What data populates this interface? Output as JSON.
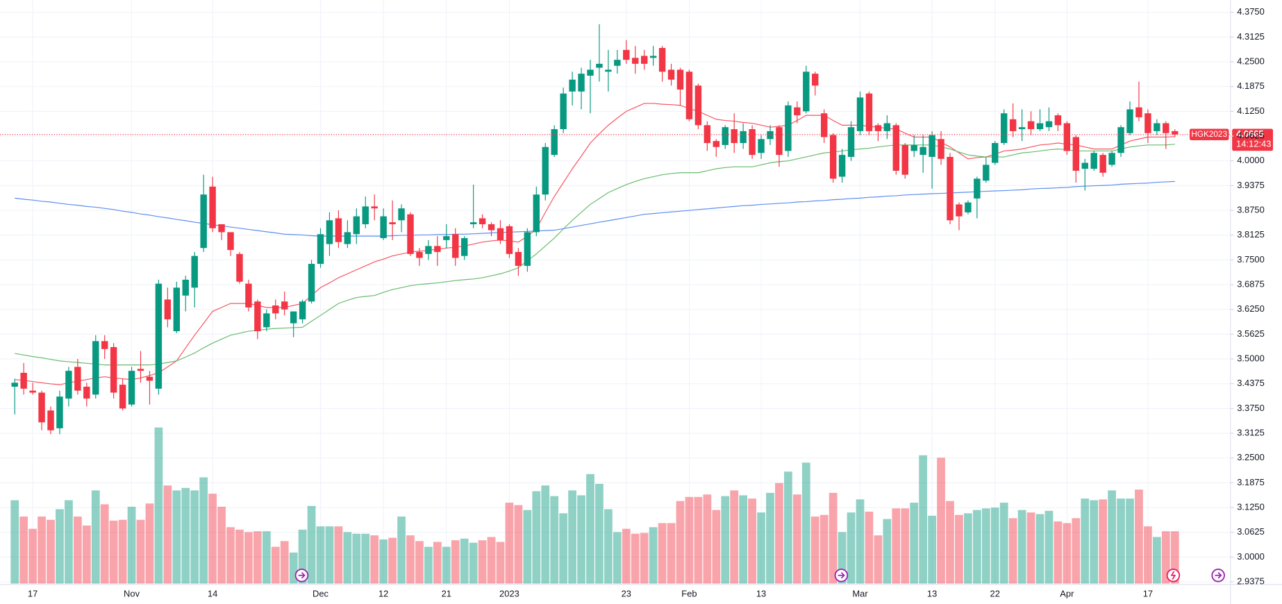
{
  "chart_data": {
    "type": "candlestick",
    "up_color": "#089981",
    "down_color": "#f23645",
    "grid": true,
    "ylim": [
      2.931,
      4.406
    ],
    "yticks": [
      {
        "value": 4.375,
        "label": "4.3750"
      },
      {
        "value": 4.3125,
        "label": "4.3125"
      },
      {
        "value": 4.25,
        "label": "4.2500"
      },
      {
        "value": 4.1875,
        "label": "4.1875"
      },
      {
        "value": 4.125,
        "label": "4.1250"
      },
      {
        "value": 4.0625,
        "label": "4.0625"
      },
      {
        "value": 4.0,
        "label": "4.0000"
      },
      {
        "value": 3.9375,
        "label": "3.9375"
      },
      {
        "value": 3.875,
        "label": "3.8750"
      },
      {
        "value": 3.8125,
        "label": "3.8125"
      },
      {
        "value": 3.75,
        "label": "3.7500"
      },
      {
        "value": 3.6875,
        "label": "3.6875"
      },
      {
        "value": 3.625,
        "label": "3.6250"
      },
      {
        "value": 3.5625,
        "label": "3.5625"
      },
      {
        "value": 3.5,
        "label": "3.5000"
      },
      {
        "value": 3.4375,
        "label": "3.4375"
      },
      {
        "value": 3.375,
        "label": "3.3750"
      },
      {
        "value": 3.3125,
        "label": "3.3125"
      },
      {
        "value": 3.25,
        "label": "3.2500"
      },
      {
        "value": 3.1875,
        "label": "3.1875"
      },
      {
        "value": 3.125,
        "label": "3.1250"
      },
      {
        "value": 3.0625,
        "label": "3.0625"
      },
      {
        "value": 3.0,
        "label": "3.0000"
      },
      {
        "value": 2.9375,
        "label": "2.9375"
      }
    ],
    "categories": [
      null,
      null,
      "17",
      null,
      null,
      null,
      null,
      null,
      null,
      null,
      null,
      null,
      null,
      "Nov",
      null,
      null,
      null,
      null,
      null,
      null,
      null,
      null,
      "14",
      null,
      null,
      null,
      null,
      null,
      null,
      null,
      null,
      null,
      null,
      null,
      "Dec",
      null,
      null,
      null,
      null,
      null,
      null,
      "12",
      null,
      null,
      null,
      null,
      null,
      null,
      "21",
      null,
      null,
      null,
      null,
      null,
      null,
      "2023",
      null,
      null,
      null,
      null,
      null,
      null,
      null,
      null,
      null,
      null,
      null,
      null,
      "23",
      null,
      null,
      null,
      null,
      null,
      null,
      "Feb",
      null,
      null,
      null,
      null,
      null,
      null,
      null,
      "13",
      null,
      null,
      null,
      null,
      null,
      null,
      null,
      null,
      null,
      null,
      "Mar",
      null,
      null,
      null,
      null,
      null,
      null,
      null,
      "13",
      null,
      null,
      null,
      null,
      null,
      null,
      "22",
      null,
      null,
      null,
      null,
      null,
      null,
      null,
      "Apr",
      null,
      null,
      null,
      null,
      null,
      null,
      null,
      null,
      "17",
      null,
      null,
      null
    ],
    "candles": {
      "open": [
        3.43,
        3.465,
        3.42,
        3.415,
        3.37,
        3.325,
        3.4,
        3.48,
        3.43,
        3.41,
        3.545,
        3.53,
        3.435,
        3.385,
        3.475,
        3.455,
        3.425,
        3.65,
        3.57,
        3.66,
        3.68,
        3.78,
        3.935,
        3.84,
        3.82,
        3.765,
        3.69,
        3.645,
        3.58,
        3.635,
        3.645,
        3.59,
        3.6,
        3.645,
        3.74,
        3.79,
        3.855,
        3.79,
        3.815,
        3.84,
        3.885,
        3.805,
        3.845,
        3.85,
        3.865,
        3.77,
        3.765,
        3.785,
        3.8,
        3.815,
        3.76,
        3.84,
        3.855,
        3.84,
        3.83,
        3.835,
        3.77,
        3.735,
        3.82,
        3.915,
        4.015,
        4.08,
        4.175,
        4.175,
        4.215,
        4.235,
        4.225,
        4.24,
        4.28,
        4.26,
        4.265,
        4.26,
        4.285,
        4.23,
        4.23,
        4.225,
        4.19,
        4.09,
        4.05,
        4.04,
        4.08,
        4.045,
        4.08,
        4.02,
        4.055,
        4.085,
        4.025,
        4.135,
        4.125,
        4.22,
        4.12,
        4.065,
        3.96,
        4.01,
        4.075,
        4.17,
        4.09,
        4.075,
        4.09,
        4.04,
        4.025,
        4.015,
        4.01,
        4.055,
        4.01,
        3.89,
        3.87,
        3.905,
        3.95,
        3.995,
        4.045,
        4.105,
        4.08,
        4.1,
        4.08,
        4.085,
        4.115,
        4.095,
        4.06,
        3.98,
        3.98,
        4.015,
        3.99,
        4.02,
        4.07,
        4.135,
        4.12,
        4.075,
        4.095,
        4.075
      ],
      "high": [
        3.45,
        3.49,
        3.44,
        3.42,
        3.38,
        3.42,
        3.48,
        3.5,
        3.44,
        3.56,
        3.56,
        3.54,
        3.45,
        3.48,
        3.52,
        3.47,
        3.7,
        3.68,
        3.695,
        3.71,
        3.77,
        3.965,
        3.96,
        3.84,
        3.82,
        3.77,
        3.7,
        3.65,
        3.625,
        3.65,
        3.67,
        3.62,
        3.65,
        3.75,
        3.83,
        3.87,
        3.875,
        3.85,
        3.88,
        3.91,
        3.915,
        3.88,
        3.9,
        3.89,
        3.87,
        3.78,
        3.8,
        3.81,
        3.84,
        3.83,
        3.81,
        3.94,
        3.865,
        3.845,
        3.85,
        3.84,
        3.78,
        3.83,
        3.935,
        4.045,
        4.09,
        4.185,
        4.225,
        4.235,
        4.255,
        4.345,
        4.28,
        4.28,
        4.305,
        4.29,
        4.28,
        4.29,
        4.29,
        4.245,
        4.235,
        4.23,
        4.195,
        4.1,
        4.055,
        4.09,
        4.12,
        4.095,
        4.09,
        4.065,
        4.09,
        4.09,
        4.15,
        4.15,
        4.24,
        4.225,
        4.13,
        4.07,
        4.03,
        4.1,
        4.175,
        4.175,
        4.095,
        4.115,
        4.095,
        4.045,
        4.065,
        4.065,
        4.075,
        4.075,
        4.02,
        3.895,
        3.9,
        3.96,
        4.01,
        4.05,
        4.13,
        4.145,
        4.13,
        4.125,
        4.13,
        4.135,
        4.12,
        4.1,
        4.065,
        4.005,
        4.025,
        4.02,
        4.025,
        4.09,
        4.15,
        4.2,
        4.13,
        4.105,
        4.1,
        4.08
      ],
      "low": [
        3.36,
        3.41,
        3.41,
        3.32,
        3.31,
        3.31,
        3.38,
        3.41,
        3.38,
        3.4,
        3.5,
        3.4,
        3.37,
        3.38,
        3.44,
        3.385,
        3.41,
        3.58,
        3.565,
        3.62,
        3.63,
        3.77,
        3.82,
        3.8,
        3.76,
        3.69,
        3.62,
        3.55,
        3.57,
        3.6,
        3.61,
        3.555,
        3.59,
        3.64,
        3.73,
        3.76,
        3.78,
        3.78,
        3.79,
        3.83,
        3.85,
        3.8,
        3.8,
        3.82,
        3.76,
        3.735,
        3.75,
        3.735,
        3.78,
        3.735,
        3.75,
        3.83,
        3.83,
        3.81,
        3.79,
        3.755,
        3.71,
        3.72,
        3.81,
        3.9,
        4.01,
        4.07,
        4.14,
        4.13,
        4.12,
        4.2,
        4.175,
        4.22,
        4.245,
        4.22,
        4.23,
        4.24,
        4.2,
        4.19,
        4.14,
        4.1,
        4.08,
        4.025,
        4.01,
        4.03,
        4.02,
        4.03,
        4.005,
        4.005,
        4.04,
        3.985,
        4.01,
        4.095,
        4.12,
        4.165,
        4.045,
        3.945,
        3.945,
        4.0,
        4.065,
        4.065,
        4.05,
        4.055,
        3.965,
        3.955,
        4.01,
        3.97,
        3.93,
        3.99,
        3.84,
        3.825,
        3.865,
        3.855,
        3.945,
        3.99,
        4.04,
        4.06,
        4.05,
        4.065,
        4.075,
        4.075,
        4.075,
        4.015,
        3.945,
        3.925,
        3.975,
        3.96,
        3.985,
        4.01,
        4.065,
        4.1,
        4.045,
        4.065,
        4.03,
        4.06
      ],
      "close": [
        3.44,
        3.425,
        3.415,
        3.34,
        3.32,
        3.405,
        3.47,
        3.42,
        3.4,
        3.545,
        3.525,
        3.415,
        3.375,
        3.47,
        3.47,
        3.445,
        3.69,
        3.6,
        3.68,
        3.7,
        3.76,
        3.915,
        3.83,
        3.82,
        3.775,
        3.695,
        3.63,
        3.57,
        3.615,
        3.615,
        3.625,
        3.62,
        3.645,
        3.74,
        3.815,
        3.85,
        3.795,
        3.82,
        3.86,
        3.885,
        3.88,
        3.86,
        3.84,
        3.88,
        3.765,
        3.755,
        3.785,
        3.77,
        3.81,
        3.755,
        3.805,
        3.845,
        3.84,
        3.825,
        3.8,
        3.765,
        3.735,
        3.82,
        3.915,
        4.035,
        4.08,
        4.17,
        4.205,
        4.22,
        4.23,
        4.245,
        4.23,
        4.255,
        4.255,
        4.245,
        4.245,
        4.265,
        4.225,
        4.205,
        4.18,
        4.105,
        4.09,
        4.045,
        4.035,
        4.085,
        4.045,
        4.075,
        4.015,
        4.055,
        4.075,
        4.015,
        4.14,
        4.115,
        4.225,
        4.19,
        4.06,
        3.955,
        4.015,
        4.085,
        4.16,
        4.075,
        4.075,
        4.095,
        3.975,
        3.965,
        4.04,
        4.035,
        4.065,
        4.005,
        3.85,
        3.86,
        3.895,
        3.955,
        3.99,
        4.045,
        4.12,
        4.075,
        4.085,
        4.08,
        4.095,
        4.1,
        4.09,
        4.025,
        3.975,
        3.995,
        4.02,
        3.97,
        4.02,
        4.085,
        4.13,
        4.11,
        4.07,
        4.095,
        4.07,
        4.0665
      ]
    },
    "volume": [
      102,
      82,
      67,
      82,
      78,
      91,
      102,
      82,
      71,
      114,
      97,
      77,
      78,
      94,
      78,
      98,
      191,
      120,
      114,
      117,
      114,
      130,
      110,
      94,
      69,
      66,
      63,
      64,
      64,
      45,
      52,
      38,
      66,
      95,
      70,
      70,
      70,
      63,
      61,
      61,
      59,
      54,
      56,
      82,
      59,
      52,
      45,
      51,
      45,
      53,
      55,
      50,
      53,
      57,
      51,
      99,
      96,
      90,
      113,
      120,
      107,
      86,
      114,
      108,
      134,
      122,
      91,
      63,
      67,
      61,
      62,
      69,
      74,
      74,
      101,
      106,
      106,
      109,
      90,
      107,
      114,
      108,
      104,
      87,
      111,
      123,
      137,
      109,
      148,
      82,
      84,
      111,
      63,
      87,
      103,
      88,
      59,
      79,
      92,
      92,
      99,
      157,
      83,
      154,
      101,
      84,
      86,
      90,
      92,
      93,
      99,
      80,
      90,
      87,
      85,
      89,
      76,
      74,
      80,
      104,
      102,
      103,
      114,
      104,
      104,
      115,
      70,
      57,
      64,
      64
    ],
    "moving_averages": [
      {
        "color": "#f7525f",
        "values": [
          3.448,
          3.446,
          3.443,
          3.44,
          3.437,
          3.435,
          3.44,
          3.444,
          3.448,
          3.452,
          3.455,
          3.452,
          3.45,
          3.448,
          3.452,
          3.458,
          3.465,
          3.48,
          3.495,
          3.528,
          3.56,
          3.59,
          3.62,
          3.63,
          3.64,
          3.64,
          3.64,
          3.635,
          3.63,
          3.63,
          3.63,
          3.635,
          3.64,
          3.66,
          3.68,
          3.692,
          3.705,
          3.715,
          3.725,
          3.735,
          3.745,
          3.752,
          3.76,
          3.765,
          3.77,
          3.772,
          3.774,
          3.777,
          3.78,
          3.782,
          3.785,
          3.79,
          3.795,
          3.798,
          3.8,
          3.798,
          3.795,
          3.81,
          3.828,
          3.87,
          3.91,
          3.945,
          3.98,
          4.012,
          4.045,
          4.068,
          4.09,
          4.108,
          4.125,
          4.135,
          4.145,
          4.145,
          4.143,
          4.142,
          4.14,
          4.132,
          4.125,
          4.115,
          4.105,
          4.102,
          4.1,
          4.097,
          4.095,
          4.09,
          4.085,
          4.087,
          4.09,
          4.102,
          4.115,
          4.115,
          4.115,
          4.102,
          4.09,
          4.09,
          4.09,
          4.087,
          4.085,
          4.082,
          4.08,
          4.07,
          4.06,
          4.06,
          4.06,
          4.047,
          4.035,
          4.02,
          4.005,
          4.008,
          4.01,
          4.017,
          4.025,
          4.027,
          4.03,
          4.035,
          4.04,
          4.042,
          4.045,
          4.042,
          4.04,
          4.035,
          4.03,
          4.03,
          4.03,
          4.04,
          4.05,
          4.055,
          4.06,
          4.06,
          4.06,
          4.061
        ]
      },
      {
        "color": "#66bb6a",
        "values": [
          3.514,
          3.51,
          3.506,
          3.503,
          3.499,
          3.495,
          3.493,
          3.491,
          3.489,
          3.487,
          3.485,
          3.485,
          3.485,
          3.485,
          3.485,
          3.485,
          3.487,
          3.491,
          3.495,
          3.505,
          3.515,
          3.528,
          3.54,
          3.55,
          3.56,
          3.565,
          3.57,
          3.572,
          3.575,
          3.577,
          3.578,
          3.579,
          3.58,
          3.595,
          3.61,
          3.625,
          3.64,
          3.648,
          3.655,
          3.658,
          3.66,
          3.668,
          3.675,
          3.68,
          3.685,
          3.688,
          3.69,
          3.692,
          3.695,
          3.698,
          3.7,
          3.702,
          3.705,
          3.71,
          3.715,
          3.722,
          3.73,
          3.748,
          3.765,
          3.785,
          3.805,
          3.828,
          3.85,
          3.87,
          3.89,
          3.905,
          3.92,
          3.93,
          3.94,
          3.948,
          3.955,
          3.96,
          3.965,
          3.968,
          3.97,
          3.97,
          3.97,
          3.975,
          3.98,
          3.983,
          3.985,
          3.985,
          3.985,
          3.99,
          3.995,
          3.998,
          4.0,
          4.005,
          4.01,
          4.015,
          4.02,
          4.022,
          4.025,
          4.028,
          4.03,
          4.032,
          4.035,
          4.038,
          4.04,
          4.04,
          4.04,
          4.04,
          4.04,
          4.035,
          4.03,
          4.022,
          4.015,
          4.012,
          4.01,
          4.01,
          4.01,
          4.015,
          4.02,
          4.022,
          4.025,
          4.028,
          4.03,
          4.028,
          4.025,
          4.025,
          4.025,
          4.025,
          4.025,
          4.03,
          4.035,
          4.038,
          4.04,
          4.04,
          4.04,
          4.042
        ]
      },
      {
        "color": "#5b8def",
        "values": [
          3.906,
          3.903,
          3.901,
          3.898,
          3.896,
          3.893,
          3.89,
          3.888,
          3.885,
          3.883,
          3.88,
          3.877,
          3.873,
          3.87,
          3.866,
          3.863,
          3.859,
          3.856,
          3.852,
          3.849,
          3.845,
          3.842,
          3.839,
          3.836,
          3.833,
          3.83,
          3.827,
          3.824,
          3.821,
          3.818,
          3.815,
          3.814,
          3.813,
          3.811,
          3.81,
          3.81,
          3.81,
          3.81,
          3.81,
          3.81,
          3.81,
          3.81,
          3.811,
          3.812,
          3.812,
          3.813,
          3.813,
          3.814,
          3.814,
          3.815,
          3.815,
          3.816,
          3.817,
          3.818,
          3.819,
          3.82,
          3.821,
          3.822,
          3.823,
          3.824,
          3.825,
          3.829,
          3.833,
          3.837,
          3.841,
          3.845,
          3.849,
          3.853,
          3.857,
          3.861,
          3.865,
          3.867,
          3.869,
          3.871,
          3.873,
          3.875,
          3.877,
          3.879,
          3.881,
          3.883,
          3.885,
          3.887,
          3.888,
          3.89,
          3.891,
          3.893,
          3.894,
          3.896,
          3.897,
          3.899,
          3.9,
          3.902,
          3.903,
          3.905,
          3.906,
          3.908,
          3.909,
          3.911,
          3.912,
          3.914,
          3.915,
          3.916,
          3.917,
          3.918,
          3.919,
          3.92,
          3.921,
          3.922,
          3.923,
          3.924,
          3.925,
          3.926,
          3.927,
          3.929,
          3.93,
          3.931,
          3.932,
          3.933,
          3.935,
          3.936,
          3.937,
          3.938,
          3.939,
          3.941,
          3.942,
          3.943,
          3.944,
          3.946,
          3.947,
          3.948
        ]
      }
    ],
    "last_price": {
      "symbol": "HGK2023",
      "value": 4.0665,
      "countdown": "14:12:43"
    }
  }
}
